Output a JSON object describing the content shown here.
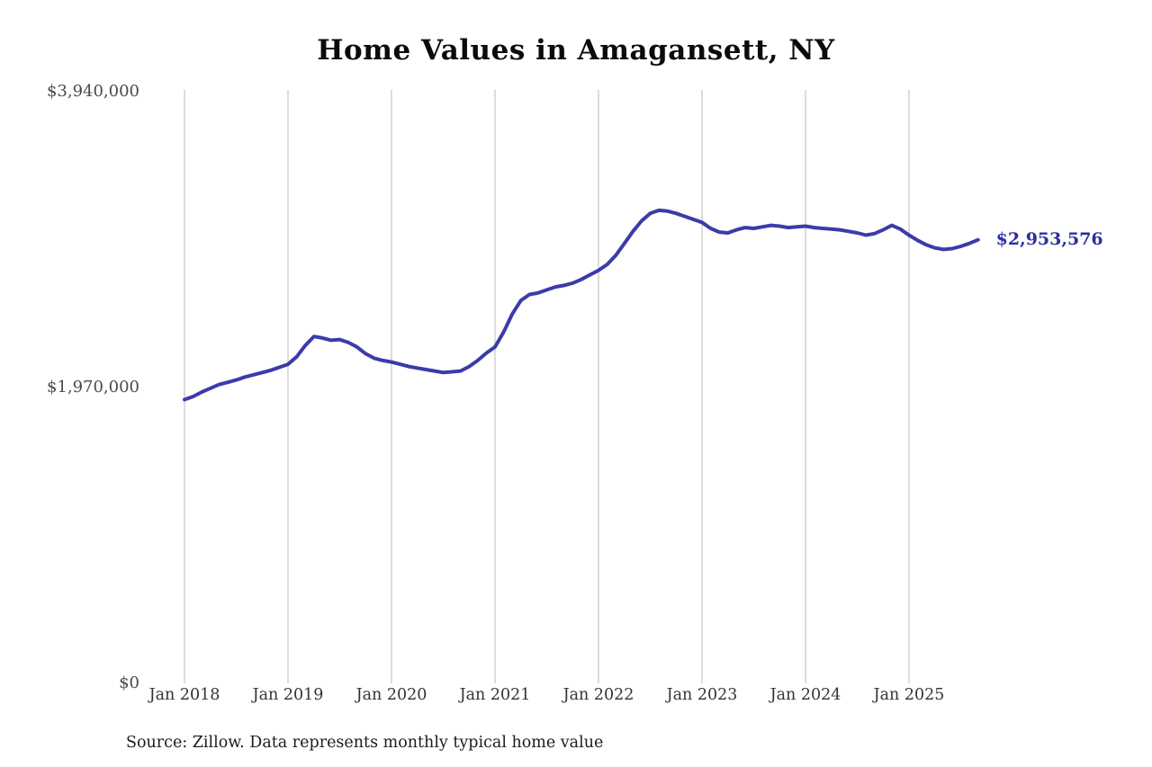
{
  "title": "Home Values in Amagansett, NY",
  "source_note": "Source: Zillow. Data represents monthly typical home value",
  "latest_value_label": "$2,953,576",
  "colors": {
    "line": "#3b3baa",
    "latest_label": "#2e2e9d",
    "grid": "#c9c9c9",
    "axis_text": "#4a4a4a",
    "background": "#ffffff"
  },
  "chart_data": {
    "type": "line",
    "title": "Home Values in Amagansett, NY",
    "xlabel": "",
    "ylabel": "",
    "ylim": [
      0,
      3940000
    ],
    "y_ticks": [
      3940000,
      1970000,
      0
    ],
    "y_tick_labels": [
      "$3,940,000",
      "$1,970,000",
      "$0"
    ],
    "x_tick_labels": [
      "Jan 2018",
      "Jan 2019",
      "Jan 2020",
      "Jan 2021",
      "Jan 2022",
      "Jan 2023",
      "Jan 2024",
      "Jan 2025"
    ],
    "x_start": "2018-01",
    "x_end": "2025-09",
    "x_frequency": "monthly",
    "grid": "vertical-only",
    "legend": "none",
    "latest_value": 2953576,
    "series": [
      {
        "name": "Typical home value",
        "values": [
          1890000,
          1910000,
          1940000,
          1965000,
          1990000,
          2005000,
          2020000,
          2040000,
          2055000,
          2070000,
          2085000,
          2105000,
          2125000,
          2175000,
          2250000,
          2310000,
          2300000,
          2285000,
          2290000,
          2270000,
          2240000,
          2195000,
          2165000,
          2150000,
          2140000,
          2125000,
          2110000,
          2100000,
          2090000,
          2080000,
          2070000,
          2075000,
          2080000,
          2110000,
          2150000,
          2200000,
          2240000,
          2340000,
          2460000,
          2550000,
          2590000,
          2600000,
          2620000,
          2640000,
          2650000,
          2665000,
          2690000,
          2720000,
          2750000,
          2790000,
          2850000,
          2930000,
          3010000,
          3080000,
          3130000,
          3150000,
          3145000,
          3130000,
          3110000,
          3090000,
          3070000,
          3030000,
          3005000,
          3000000,
          3020000,
          3035000,
          3030000,
          3040000,
          3050000,
          3045000,
          3035000,
          3040000,
          3045000,
          3035000,
          3030000,
          3025000,
          3020000,
          3010000,
          3000000,
          2985000,
          2995000,
          3020000,
          3050000,
          3025000,
          2985000,
          2950000,
          2920000,
          2900000,
          2890000,
          2895000,
          2910000,
          2930000,
          2953576
        ]
      }
    ]
  }
}
